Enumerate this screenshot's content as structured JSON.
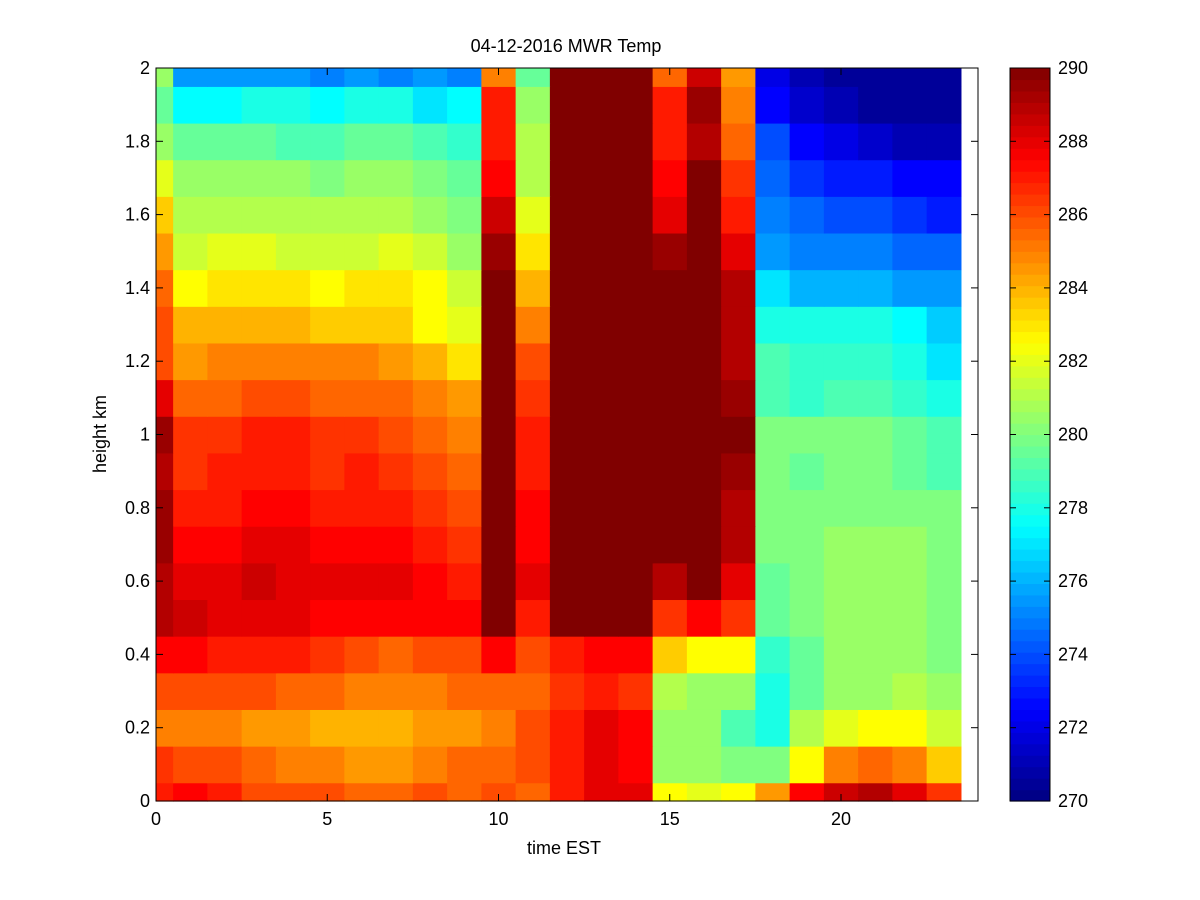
{
  "chart_data": {
    "type": "heatmap",
    "title": "04-12-2016 MWR Temp",
    "xlabel": "time EST",
    "ylabel": "height km",
    "xlim": [
      0,
      24
    ],
    "ylim": [
      0,
      2
    ],
    "xticks": [
      "0",
      "5",
      "10",
      "15",
      "20"
    ],
    "yticks": [
      "0",
      "0.2",
      "0.4",
      "0.6",
      "0.8",
      "1",
      "1.2",
      "1.4",
      "1.6",
      "1.8",
      "2"
    ],
    "colormap": "jet",
    "clim": [
      270,
      290
    ],
    "colorbar_ticks": [
      "270",
      "272",
      "274",
      "276",
      "278",
      "280",
      "282",
      "284",
      "286",
      "288",
      "290"
    ],
    "x": [
      0,
      1,
      2,
      3,
      4,
      5,
      6,
      7,
      8,
      9,
      10,
      11,
      12,
      13,
      14,
      15,
      16,
      17,
      18,
      19,
      20,
      21,
      22,
      23
    ],
    "y": [
      0,
      0.1,
      0.2,
      0.3,
      0.4,
      0.5,
      0.6,
      0.7,
      0.8,
      0.9,
      1.0,
      1.1,
      1.2,
      1.3,
      1.4,
      1.5,
      1.6,
      1.7,
      1.8,
      1.9,
      2.0
    ],
    "z": [
      [
        287,
        287.5,
        287,
        286,
        286,
        286,
        285.5,
        285.5,
        286,
        285.5,
        286,
        285.5,
        287,
        288,
        288,
        282.5,
        282,
        282.5,
        284.5,
        287.5,
        288.5,
        289,
        288,
        286.5
      ],
      [
        286.5,
        286,
        286,
        285.5,
        285,
        285,
        284.5,
        284.5,
        285,
        285.5,
        285.5,
        286,
        287,
        288,
        287.5,
        280.5,
        280.5,
        280,
        280,
        282.5,
        285,
        285.5,
        285,
        283.5
      ],
      [
        285,
        285,
        285,
        284.5,
        284.5,
        284,
        284,
        284,
        284.5,
        284.5,
        285,
        286,
        287,
        288,
        287.5,
        280.5,
        280.5,
        279,
        278,
        281,
        282,
        282.5,
        282.5,
        281.5
      ],
      [
        286,
        286,
        286,
        286,
        285.5,
        285.5,
        285,
        285,
        285,
        285.5,
        285.5,
        285.5,
        286.5,
        287,
        286.5,
        281,
        280.5,
        280.5,
        278,
        279.5,
        280.5,
        280.5,
        281,
        280.5
      ],
      [
        287.5,
        287.5,
        287,
        287,
        287,
        286.5,
        286,
        285.5,
        286,
        286,
        287.5,
        286,
        287,
        287.5,
        287.5,
        283.5,
        282.5,
        282.5,
        278.5,
        279.5,
        280.5,
        280.5,
        280.5,
        280
      ],
      [
        289,
        288.5,
        288,
        288,
        288,
        287.5,
        287.5,
        287.5,
        287.5,
        287.5,
        290,
        287,
        290,
        290,
        290,
        286.5,
        287.5,
        286.5,
        279.5,
        280,
        280.5,
        280.5,
        280.5,
        280
      ],
      [
        289,
        288,
        288,
        288.5,
        288,
        288,
        288,
        288,
        287.5,
        287,
        290,
        288,
        290,
        290,
        290,
        289,
        290,
        288,
        279.5,
        280,
        280.5,
        280.5,
        280.5,
        280
      ],
      [
        289.5,
        287.5,
        287.5,
        288,
        288,
        287.5,
        287.5,
        287.5,
        287,
        286.5,
        290,
        287.5,
        290,
        290,
        290,
        290,
        290,
        289,
        280,
        280,
        280.5,
        280.5,
        280.5,
        280
      ],
      [
        289.5,
        287,
        287,
        287.5,
        287.5,
        287,
        287,
        287,
        286.5,
        286,
        290,
        287.5,
        290,
        290,
        290,
        290,
        290,
        289,
        280,
        280,
        280,
        280,
        280,
        280
      ],
      [
        289,
        286.5,
        287,
        287,
        287,
        286.5,
        287,
        286.5,
        286,
        285.5,
        290,
        287,
        290,
        290,
        290,
        290,
        290,
        289.5,
        280,
        279.5,
        280,
        280,
        279.5,
        279
      ],
      [
        289.5,
        286.5,
        286.5,
        287,
        287,
        286.5,
        286.5,
        286,
        285.5,
        285,
        290,
        287,
        290,
        290,
        290,
        290,
        290,
        290,
        280,
        280,
        280,
        280,
        279.5,
        279
      ],
      [
        288,
        285.5,
        285.5,
        286,
        286,
        285.5,
        285.5,
        285.5,
        285,
        284.5,
        290,
        286.5,
        290,
        290,
        290,
        290,
        290,
        289.5,
        279,
        278.5,
        279,
        279,
        278.5,
        278
      ],
      [
        286,
        284.5,
        285,
        285,
        285,
        285,
        285,
        284.5,
        284,
        283,
        290,
        286,
        290,
        290,
        290,
        290,
        290,
        289,
        279,
        278.5,
        278.5,
        278.5,
        278,
        277
      ],
      [
        286,
        284,
        284,
        284,
        284,
        283.5,
        283.5,
        283.5,
        282.5,
        282,
        290,
        285,
        290,
        290,
        290,
        290,
        290,
        289,
        278,
        278,
        278,
        278,
        277.5,
        276.5
      ],
      [
        285.5,
        282.5,
        283,
        283,
        283,
        282.5,
        283,
        283,
        282.5,
        281.5,
        290,
        284,
        290,
        290,
        290,
        290,
        290,
        289,
        277,
        276,
        276,
        276,
        275.5,
        275.5
      ],
      [
        284.5,
        281.5,
        282,
        282,
        281.5,
        281.5,
        281.5,
        282,
        281.5,
        280.5,
        289.5,
        283,
        290,
        290,
        290,
        289.5,
        290,
        288,
        275.5,
        275,
        275,
        275,
        274.5,
        274.5
      ],
      [
        283.5,
        281,
        281,
        281,
        281,
        281,
        281,
        281,
        280.5,
        280,
        288.5,
        282,
        290,
        290,
        290,
        288,
        290,
        287,
        275,
        274.5,
        274,
        274,
        273.5,
        273
      ],
      [
        282,
        280.5,
        280.5,
        280.5,
        280.5,
        280,
        280.5,
        280.5,
        280,
        279.5,
        287.5,
        281,
        290,
        290,
        290,
        287.5,
        290,
        286.5,
        274.5,
        273.5,
        273,
        273,
        272.5,
        272.5
      ],
      [
        280.5,
        279.5,
        279.5,
        279.5,
        279,
        279,
        279.5,
        279.5,
        279,
        278.5,
        287,
        281,
        290,
        290,
        290,
        287,
        289,
        285.5,
        274,
        272.5,
        272,
        271.5,
        271,
        271
      ],
      [
        279.5,
        277.5,
        277.5,
        278,
        278,
        277.5,
        278,
        278,
        277,
        277.5,
        287,
        280.5,
        290,
        290,
        290,
        287,
        289.5,
        285,
        272.5,
        271.5,
        271,
        270.5,
        270.5,
        270.5
      ],
      [
        280.5,
        275.5,
        275.5,
        275.5,
        275.5,
        275,
        275.5,
        275,
        275.5,
        275,
        285,
        279.5,
        290,
        290,
        290,
        285.5,
        288.5,
        284.5,
        272,
        271,
        270.5,
        270.5,
        270.5,
        270.5
      ]
    ]
  }
}
